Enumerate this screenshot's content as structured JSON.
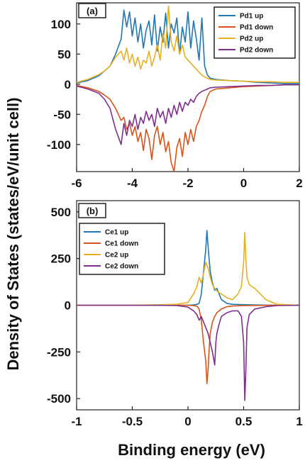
{
  "figure": {
    "ylabel": "Density of States (states/eV/unit cell)",
    "xlabel": "Binding energy  (eV)"
  },
  "chart_data": [
    {
      "type": "line",
      "panel_label": "(a)",
      "xlim": [
        -6,
        2
      ],
      "ylim": [
        -145,
        135
      ],
      "xticks": [
        -6,
        -4,
        -2,
        0,
        2
      ],
      "xtick_labels": [
        "-6",
        "-4",
        "-2",
        "0",
        "2"
      ],
      "yticks": [
        -100,
        -50,
        0,
        50,
        100
      ],
      "ytick_labels": [
        "-100",
        "-50",
        "0",
        "50",
        "100"
      ],
      "grid": false,
      "legend_position": "top-right",
      "series": [
        {
          "name": "Pd1 up",
          "color": "#1f77b4",
          "x": [
            -6,
            -5.6,
            -5.2,
            -5.0,
            -4.8,
            -4.6,
            -4.4,
            -4.3,
            -4.2,
            -4.1,
            -4.0,
            -3.9,
            -3.8,
            -3.7,
            -3.6,
            -3.5,
            -3.4,
            -3.3,
            -3.2,
            -3.1,
            -3.0,
            -2.9,
            -2.8,
            -2.7,
            -2.6,
            -2.5,
            -2.4,
            -2.3,
            -2.2,
            -2.1,
            -2.0,
            -1.9,
            -1.8,
            -1.7,
            -1.6,
            -1.5,
            -1.4,
            -1.3,
            -1.2,
            -1.0,
            -0.5,
            0,
            0.5,
            1.0,
            1.5,
            2.0
          ],
          "y": [
            2,
            6,
            14,
            22,
            30,
            50,
            75,
            123,
            95,
            120,
            80,
            110,
            70,
            100,
            60,
            90,
            105,
            65,
            115,
            55,
            95,
            70,
            118,
            60,
            100,
            85,
            110,
            50,
            95,
            70,
            120,
            60,
            105,
            75,
            40,
            110,
            30,
            15,
            10,
            8,
            6,
            5,
            3,
            2,
            1,
            1
          ]
        },
        {
          "name": "Pd1 down",
          "color": "#d95319",
          "x": [
            -6,
            -5.6,
            -5.2,
            -5.0,
            -4.8,
            -4.6,
            -4.4,
            -4.3,
            -4.2,
            -4.1,
            -4.0,
            -3.9,
            -3.8,
            -3.7,
            -3.6,
            -3.5,
            -3.4,
            -3.3,
            -3.2,
            -3.1,
            -3.0,
            -2.9,
            -2.8,
            -2.7,
            -2.6,
            -2.5,
            -2.4,
            -2.3,
            -2.2,
            -2.1,
            -2.0,
            -1.9,
            -1.8,
            -1.7,
            -1.6,
            -1.5,
            -1.4,
            -1.3,
            -1.2,
            -1.0,
            -0.5,
            0,
            0.5,
            1.0,
            1.5,
            2.0
          ],
          "y": [
            -2,
            -6,
            -12,
            -18,
            -25,
            -40,
            -60,
            -55,
            -75,
            -65,
            -85,
            -70,
            -95,
            -80,
            -110,
            -75,
            -90,
            -125,
            -85,
            -70,
            -100,
            -80,
            -112,
            -95,
            -130,
            -145,
            -105,
            -90,
            -120,
            -80,
            -100,
            -75,
            -95,
            -70,
            -60,
            -45,
            -35,
            -20,
            -12,
            -8,
            -6,
            -4,
            -3,
            -2,
            -1,
            -1
          ]
        },
        {
          "name": "Pd2 up",
          "color": "#e8b020",
          "x": [
            -6,
            -5.6,
            -5.2,
            -5.0,
            -4.8,
            -4.6,
            -4.4,
            -4.3,
            -4.2,
            -4.1,
            -4.0,
            -3.9,
            -3.8,
            -3.7,
            -3.6,
            -3.5,
            -3.4,
            -3.3,
            -3.2,
            -3.1,
            -3.0,
            -2.9,
            -2.8,
            -2.7,
            -2.6,
            -2.5,
            -2.4,
            -2.3,
            -2.2,
            -2.1,
            -2.0,
            -1.9,
            -1.8,
            -1.7,
            -1.6,
            -1.5,
            -1.4,
            -1.3,
            -1.2,
            -1.0,
            -0.5,
            0,
            0.5,
            1.0,
            1.5,
            2.0
          ],
          "y": [
            3,
            8,
            16,
            22,
            30,
            45,
            55,
            40,
            60,
            35,
            50,
            30,
            45,
            25,
            40,
            35,
            55,
            30,
            45,
            65,
            40,
            85,
            60,
            130,
            70,
            55,
            80,
            50,
            65,
            45,
            40,
            35,
            30,
            25,
            20,
            15,
            12,
            10,
            8,
            7,
            6,
            5,
            4,
            4,
            3,
            3
          ]
        },
        {
          "name": "Pd2 down",
          "color": "#7e2f8e",
          "x": [
            -6,
            -5.6,
            -5.2,
            -5.0,
            -4.8,
            -4.6,
            -4.4,
            -4.3,
            -4.2,
            -4.1,
            -4.0,
            -3.9,
            -3.8,
            -3.7,
            -3.6,
            -3.5,
            -3.4,
            -3.3,
            -3.2,
            -3.1,
            -3.0,
            -2.9,
            -2.8,
            -2.7,
            -2.6,
            -2.5,
            -2.4,
            -2.3,
            -2.2,
            -2.1,
            -2.0,
            -1.9,
            -1.8,
            -1.7,
            -1.6,
            -1.5,
            -1.4,
            -1.3,
            -1.2,
            -1.0,
            -0.5,
            0,
            0.5,
            1.0,
            1.5,
            2.0
          ],
          "y": [
            -3,
            -8,
            -15,
            -25,
            -40,
            -75,
            -100,
            -65,
            -85,
            -60,
            -70,
            -50,
            -75,
            -55,
            -65,
            -45,
            -60,
            -50,
            -70,
            -40,
            -55,
            -45,
            -65,
            -40,
            -55,
            -35,
            -50,
            -30,
            -45,
            -30,
            -35,
            -25,
            -30,
            -20,
            -15,
            -12,
            -10,
            -8,
            -6,
            -5,
            -4,
            -3,
            -2,
            -2,
            -1,
            -1
          ]
        }
      ]
    },
    {
      "type": "line",
      "panel_label": "(b)",
      "xlim": [
        -1,
        1
      ],
      "ylim": [
        -560,
        560
      ],
      "xticks": [
        -1,
        -0.5,
        0,
        0.5,
        1
      ],
      "xtick_labels": [
        "-1",
        "-0.5",
        "0",
        "0.5",
        "1"
      ],
      "yticks": [
        -500,
        -250,
        0,
        250,
        500
      ],
      "ytick_labels": [
        "-500",
        "-250",
        "0",
        "250",
        "500"
      ],
      "grid": false,
      "legend_position": "top-left",
      "series": [
        {
          "name": "Ce1 up",
          "color": "#1f77b4",
          "x": [
            -1,
            -0.5,
            -0.2,
            0.0,
            0.05,
            0.08,
            0.1,
            0.12,
            0.14,
            0.16,
            0.17,
            0.18,
            0.19,
            0.2,
            0.22,
            0.24,
            0.26,
            0.28,
            0.3,
            0.35,
            0.4,
            0.5,
            0.6,
            0.8,
            1.0
          ],
          "y": [
            0,
            0,
            0,
            0,
            2,
            5,
            10,
            60,
            180,
            300,
            400,
            320,
            250,
            180,
            120,
            80,
            90,
            60,
            30,
            10,
            5,
            3,
            2,
            0,
            0
          ]
        },
        {
          "name": "Ce1 down",
          "color": "#d95319",
          "x": [
            -1,
            -0.5,
            -0.2,
            0.0,
            0.05,
            0.08,
            0.1,
            0.12,
            0.14,
            0.16,
            0.17,
            0.18,
            0.19,
            0.2,
            0.22,
            0.24,
            0.26,
            0.28,
            0.3,
            0.35,
            0.4,
            0.5,
            0.6,
            0.8,
            1.0
          ],
          "y": [
            0,
            0,
            0,
            0,
            -2,
            -5,
            -20,
            -80,
            -200,
            -300,
            -420,
            -350,
            -240,
            -150,
            -90,
            -60,
            -40,
            -30,
            -20,
            -8,
            -4,
            -2,
            -1,
            0,
            0
          ]
        },
        {
          "name": "Ce2 up",
          "color": "#e8b020",
          "x": [
            -1,
            -0.5,
            -0.3,
            -0.1,
            0.0,
            0.05,
            0.08,
            0.1,
            0.12,
            0.14,
            0.16,
            0.18,
            0.2,
            0.22,
            0.25,
            0.3,
            0.35,
            0.4,
            0.45,
            0.48,
            0.5,
            0.51,
            0.52,
            0.53,
            0.55,
            0.6,
            0.65,
            0.7,
            0.8,
            1.0
          ],
          "y": [
            0,
            0,
            2,
            5,
            15,
            60,
            100,
            150,
            120,
            170,
            230,
            200,
            150,
            110,
            80,
            60,
            40,
            30,
            60,
            100,
            230,
            390,
            250,
            150,
            110,
            90,
            60,
            30,
            5,
            0
          ]
        },
        {
          "name": "Ce2 down",
          "color": "#7e2f8e",
          "x": [
            -1,
            -0.5,
            -0.3,
            -0.1,
            0.0,
            0.05,
            0.08,
            0.1,
            0.12,
            0.14,
            0.16,
            0.18,
            0.2,
            0.22,
            0.24,
            0.25,
            0.26,
            0.28,
            0.3,
            0.35,
            0.4,
            0.45,
            0.48,
            0.5,
            0.51,
            0.52,
            0.53,
            0.55,
            0.6,
            0.7,
            0.8,
            1.0
          ],
          "y": [
            0,
            0,
            0,
            -2,
            -10,
            -30,
            -50,
            -80,
            -60,
            -90,
            -120,
            -150,
            -200,
            -250,
            -320,
            -200,
            -150,
            -100,
            -60,
            -40,
            -30,
            -30,
            -60,
            -200,
            -510,
            -350,
            -120,
            -50,
            -20,
            -8,
            -2,
            0
          ]
        }
      ]
    }
  ]
}
